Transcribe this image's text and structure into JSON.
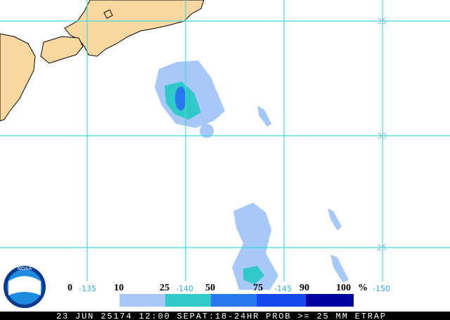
{
  "map": {
    "latitude_labels": [
      "35",
      "30",
      "25"
    ],
    "longitude_labels": [
      "-135",
      "-140",
      "-145",
      "-150"
    ],
    "legend": {
      "labels": [
        "0",
        "10",
        "25",
        "50",
        "75",
        "90",
        "100"
      ],
      "unit": "%",
      "colors": [
        "#ffffff",
        "#a8c8f8",
        "#30c8c8",
        "#2878f0",
        "#1848f0",
        "#0000d8"
      ],
      "last_color": "#0000a0"
    },
    "logo": "NOAA",
    "caption": "23 JUN 25174 12:00 SEPAT:18-24HR PROB >= 25 MM ETRAP"
  }
}
